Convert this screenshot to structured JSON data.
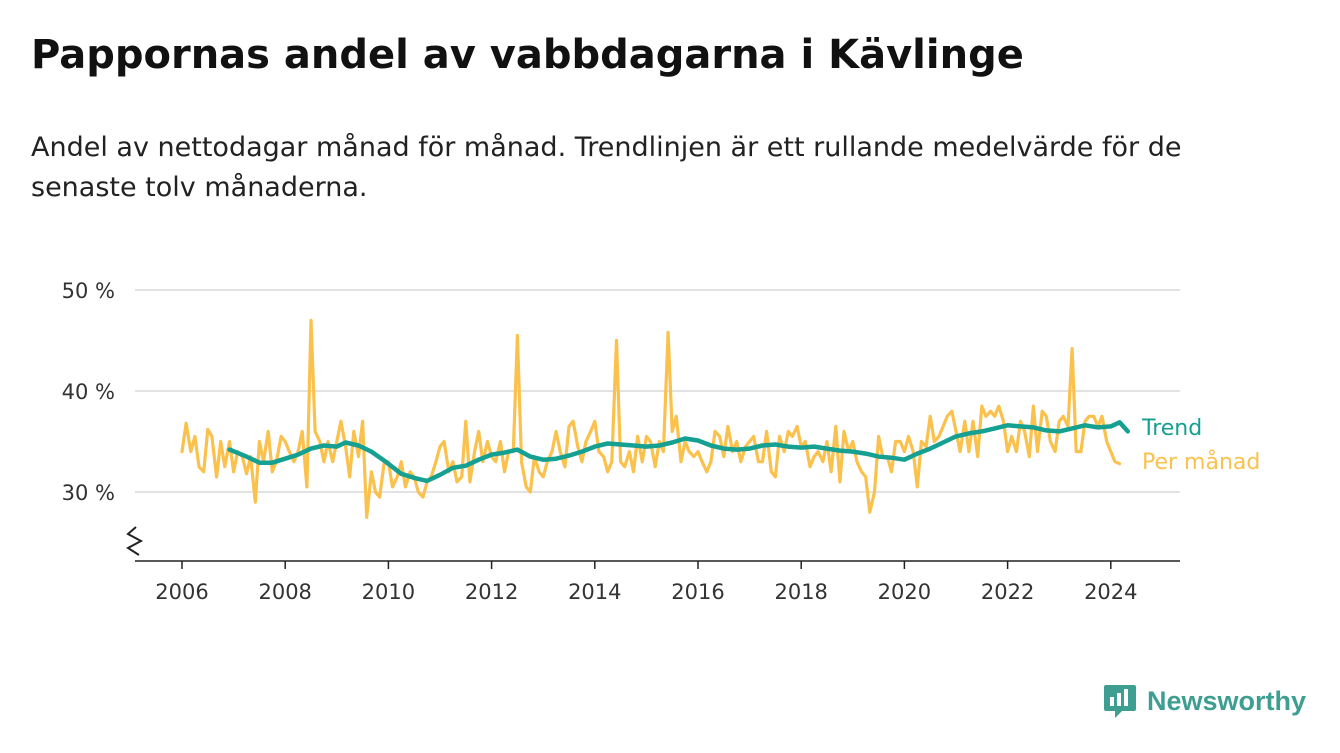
{
  "title": "Pappornas andel av vabbdagarna i Kävlinge",
  "subtitle": "Andel av nettodagar månad för månad. Trendlinjen är ett rullande medelvärde för de senaste tolv månaderna.",
  "brand": {
    "name": "Newsworthy",
    "color": "#3f9e92"
  },
  "chart_data": {
    "type": "line",
    "xlabel": "",
    "ylabel": "",
    "xlim": [
      2005.75,
      2025.1
    ],
    "ylim": [
      23,
      50
    ],
    "y_axis_break": true,
    "grid": true,
    "y_ticks": [
      {
        "value": 30,
        "label": "30 %"
      },
      {
        "value": 40,
        "label": "40 %"
      },
      {
        "value": 50,
        "label": "50 %"
      }
    ],
    "x_ticks": [
      {
        "value": 2006,
        "label": "2006"
      },
      {
        "value": 2008,
        "label": "2008"
      },
      {
        "value": 2010,
        "label": "2010"
      },
      {
        "value": 2012,
        "label": "2012"
      },
      {
        "value": 2014,
        "label": "2014"
      },
      {
        "value": 2016,
        "label": "2016"
      },
      {
        "value": 2018,
        "label": "2018"
      },
      {
        "value": 2020,
        "label": "2020"
      },
      {
        "value": 2022,
        "label": "2022"
      },
      {
        "value": 2024,
        "label": "2024"
      }
    ],
    "series": [
      {
        "name": "Per månad",
        "color": "#fbc14d",
        "points": [
          [
            2006.0,
            34
          ],
          [
            2006.08,
            36.8
          ],
          [
            2006.17,
            34
          ],
          [
            2006.25,
            35.5
          ],
          [
            2006.33,
            32.5
          ],
          [
            2006.42,
            32
          ],
          [
            2006.5,
            36.2
          ],
          [
            2006.58,
            35.5
          ],
          [
            2006.67,
            31.5
          ],
          [
            2006.75,
            35
          ],
          [
            2006.83,
            32.5
          ],
          [
            2006.92,
            35
          ],
          [
            2007.0,
            32
          ],
          [
            2007.08,
            34
          ],
          [
            2007.17,
            33.5
          ],
          [
            2007.25,
            31.8
          ],
          [
            2007.33,
            33.5
          ],
          [
            2007.42,
            29
          ],
          [
            2007.5,
            35
          ],
          [
            2007.58,
            33
          ],
          [
            2007.67,
            36
          ],
          [
            2007.75,
            32
          ],
          [
            2007.83,
            33
          ],
          [
            2007.92,
            35.5
          ],
          [
            2008.0,
            35
          ],
          [
            2008.08,
            34
          ],
          [
            2008.17,
            33
          ],
          [
            2008.25,
            34
          ],
          [
            2008.33,
            36
          ],
          [
            2008.42,
            30.5
          ],
          [
            2008.5,
            47
          ],
          [
            2008.58,
            36
          ],
          [
            2008.67,
            35
          ],
          [
            2008.75,
            33
          ],
          [
            2008.83,
            35
          ],
          [
            2008.92,
            33
          ],
          [
            2009.0,
            35
          ],
          [
            2009.08,
            37
          ],
          [
            2009.17,
            34.5
          ],
          [
            2009.25,
            31.5
          ],
          [
            2009.33,
            36
          ],
          [
            2009.42,
            33.5
          ],
          [
            2009.5,
            37
          ],
          [
            2009.58,
            27.5
          ],
          [
            2009.67,
            32
          ],
          [
            2009.75,
            30
          ],
          [
            2009.83,
            29.5
          ],
          [
            2009.92,
            33
          ],
          [
            2010.0,
            33
          ],
          [
            2010.08,
            30.5
          ],
          [
            2010.17,
            31.5
          ],
          [
            2010.25,
            33
          ],
          [
            2010.33,
            30.5
          ],
          [
            2010.42,
            32
          ],
          [
            2010.5,
            31.5
          ],
          [
            2010.58,
            30
          ],
          [
            2010.67,
            29.5
          ],
          [
            2010.75,
            31
          ],
          [
            2010.83,
            31.5
          ],
          [
            2010.92,
            33
          ],
          [
            2011.0,
            34.5
          ],
          [
            2011.08,
            35
          ],
          [
            2011.17,
            32
          ],
          [
            2011.25,
            33
          ],
          [
            2011.33,
            31
          ],
          [
            2011.42,
            31.5
          ],
          [
            2011.5,
            37
          ],
          [
            2011.58,
            31
          ],
          [
            2011.67,
            34
          ],
          [
            2011.75,
            36
          ],
          [
            2011.83,
            33
          ],
          [
            2011.92,
            35
          ],
          [
            2012.0,
            33.5
          ],
          [
            2012.08,
            33
          ],
          [
            2012.17,
            35
          ],
          [
            2012.25,
            32
          ],
          [
            2012.33,
            34
          ],
          [
            2012.42,
            34
          ],
          [
            2012.5,
            45.5
          ],
          [
            2012.58,
            33
          ],
          [
            2012.67,
            30.5
          ],
          [
            2012.75,
            30
          ],
          [
            2012.83,
            33.5
          ],
          [
            2012.92,
            32
          ],
          [
            2013.0,
            31.5
          ],
          [
            2013.08,
            33
          ],
          [
            2013.17,
            34
          ],
          [
            2013.25,
            36
          ],
          [
            2013.33,
            34
          ],
          [
            2013.42,
            32.5
          ],
          [
            2013.5,
            36.5
          ],
          [
            2013.58,
            37
          ],
          [
            2013.67,
            34.5
          ],
          [
            2013.75,
            33
          ],
          [
            2013.83,
            35
          ],
          [
            2013.92,
            36
          ],
          [
            2014.0,
            37
          ],
          [
            2014.08,
            34
          ],
          [
            2014.17,
            33.5
          ],
          [
            2014.25,
            32
          ],
          [
            2014.33,
            33
          ],
          [
            2014.42,
            45
          ],
          [
            2014.5,
            33
          ],
          [
            2014.58,
            32.5
          ],
          [
            2014.67,
            34
          ],
          [
            2014.75,
            32
          ],
          [
            2014.83,
            35.5
          ],
          [
            2014.92,
            33
          ],
          [
            2015.0,
            35.5
          ],
          [
            2015.08,
            35
          ],
          [
            2015.17,
            32.5
          ],
          [
            2015.25,
            35
          ],
          [
            2015.33,
            34
          ],
          [
            2015.42,
            45.8
          ],
          [
            2015.5,
            36
          ],
          [
            2015.58,
            37.5
          ],
          [
            2015.67,
            33
          ],
          [
            2015.75,
            35
          ],
          [
            2015.83,
            34
          ],
          [
            2015.92,
            33.5
          ],
          [
            2016.0,
            34
          ],
          [
            2016.08,
            33
          ],
          [
            2016.17,
            32
          ],
          [
            2016.25,
            33
          ],
          [
            2016.33,
            36
          ],
          [
            2016.42,
            35.5
          ],
          [
            2016.5,
            33.5
          ],
          [
            2016.58,
            36.5
          ],
          [
            2016.67,
            34
          ],
          [
            2016.75,
            35
          ],
          [
            2016.83,
            33
          ],
          [
            2016.92,
            34.5
          ],
          [
            2017.0,
            35
          ],
          [
            2017.08,
            35.5
          ],
          [
            2017.17,
            33
          ],
          [
            2017.25,
            33
          ],
          [
            2017.33,
            36
          ],
          [
            2017.42,
            32
          ],
          [
            2017.5,
            31.5
          ],
          [
            2017.58,
            35.5
          ],
          [
            2017.67,
            34
          ],
          [
            2017.75,
            36
          ],
          [
            2017.83,
            35.5
          ],
          [
            2017.92,
            36.5
          ],
          [
            2018.0,
            34.5
          ],
          [
            2018.08,
            35
          ],
          [
            2018.17,
            32.5
          ],
          [
            2018.25,
            33.5
          ],
          [
            2018.33,
            34
          ],
          [
            2018.42,
            33
          ],
          [
            2018.5,
            35
          ],
          [
            2018.58,
            32
          ],
          [
            2018.67,
            36.5
          ],
          [
            2018.75,
            31
          ],
          [
            2018.83,
            36
          ],
          [
            2018.92,
            34
          ],
          [
            2019.0,
            35
          ],
          [
            2019.08,
            33
          ],
          [
            2019.17,
            32
          ],
          [
            2019.25,
            31.5
          ],
          [
            2019.33,
            28
          ],
          [
            2019.42,
            30
          ],
          [
            2019.5,
            35.5
          ],
          [
            2019.58,
            33.5
          ],
          [
            2019.67,
            33.5
          ],
          [
            2019.75,
            32
          ],
          [
            2019.83,
            35
          ],
          [
            2019.92,
            35
          ],
          [
            2020.0,
            34
          ],
          [
            2020.08,
            35.5
          ],
          [
            2020.17,
            34
          ],
          [
            2020.25,
            30.5
          ],
          [
            2020.33,
            35
          ],
          [
            2020.42,
            34.5
          ],
          [
            2020.5,
            37.5
          ],
          [
            2020.58,
            35
          ],
          [
            2020.67,
            35.5
          ],
          [
            2020.75,
            36.5
          ],
          [
            2020.83,
            37.5
          ],
          [
            2020.92,
            38
          ],
          [
            2021.0,
            36
          ],
          [
            2021.08,
            34
          ],
          [
            2021.17,
            37
          ],
          [
            2021.25,
            34
          ],
          [
            2021.33,
            37
          ],
          [
            2021.42,
            33.5
          ],
          [
            2021.5,
            38.5
          ],
          [
            2021.58,
            37.5
          ],
          [
            2021.67,
            38
          ],
          [
            2021.75,
            37.5
          ],
          [
            2021.83,
            38.5
          ],
          [
            2021.92,
            37
          ],
          [
            2022.0,
            34
          ],
          [
            2022.08,
            35.5
          ],
          [
            2022.17,
            34
          ],
          [
            2022.25,
            37
          ],
          [
            2022.33,
            36
          ],
          [
            2022.42,
            33.5
          ],
          [
            2022.5,
            38.5
          ],
          [
            2022.58,
            34
          ],
          [
            2022.67,
            38
          ],
          [
            2022.75,
            37.5
          ],
          [
            2022.83,
            35
          ],
          [
            2022.92,
            34
          ],
          [
            2023.0,
            37
          ],
          [
            2023.08,
            37.5
          ],
          [
            2023.17,
            36.5
          ],
          [
            2023.25,
            44.2
          ],
          [
            2023.33,
            34
          ],
          [
            2023.42,
            34
          ],
          [
            2023.5,
            37
          ],
          [
            2023.58,
            37.5
          ],
          [
            2023.67,
            37.5
          ],
          [
            2023.75,
            36.5
          ],
          [
            2023.83,
            37.5
          ],
          [
            2023.92,
            35
          ],
          [
            2024.0,
            34
          ],
          [
            2024.08,
            33
          ],
          [
            2024.17,
            32.8
          ]
        ]
      },
      {
        "name": "Trend",
        "color": "#16a092",
        "points": [
          [
            2006.92,
            34.2
          ],
          [
            2007.25,
            33.5
          ],
          [
            2007.5,
            32.9
          ],
          [
            2007.75,
            32.9
          ],
          [
            2008.0,
            33.3
          ],
          [
            2008.25,
            33.7
          ],
          [
            2008.5,
            34.3
          ],
          [
            2008.75,
            34.6
          ],
          [
            2009.0,
            34.5
          ],
          [
            2009.17,
            34.9
          ],
          [
            2009.42,
            34.6
          ],
          [
            2009.67,
            34
          ],
          [
            2009.92,
            33.1
          ],
          [
            2010.25,
            31.8
          ],
          [
            2010.5,
            31.4
          ],
          [
            2010.75,
            31.1
          ],
          [
            2011.0,
            31.7
          ],
          [
            2011.25,
            32.4
          ],
          [
            2011.5,
            32.6
          ],
          [
            2011.75,
            33.2
          ],
          [
            2012.0,
            33.7
          ],
          [
            2012.25,
            33.9
          ],
          [
            2012.5,
            34.2
          ],
          [
            2012.75,
            33.5
          ],
          [
            2013.0,
            33.2
          ],
          [
            2013.25,
            33.3
          ],
          [
            2013.5,
            33.6
          ],
          [
            2013.75,
            34
          ],
          [
            2014.0,
            34.5
          ],
          [
            2014.25,
            34.8
          ],
          [
            2014.5,
            34.7
          ],
          [
            2014.75,
            34.6
          ],
          [
            2015.0,
            34.5
          ],
          [
            2015.25,
            34.6
          ],
          [
            2015.5,
            34.9
          ],
          [
            2015.75,
            35.3
          ],
          [
            2016.0,
            35.1
          ],
          [
            2016.25,
            34.6
          ],
          [
            2016.5,
            34.3
          ],
          [
            2016.75,
            34.2
          ],
          [
            2017.0,
            34.3
          ],
          [
            2017.25,
            34.6
          ],
          [
            2017.5,
            34.7
          ],
          [
            2017.75,
            34.5
          ],
          [
            2018.0,
            34.4
          ],
          [
            2018.25,
            34.5
          ],
          [
            2018.5,
            34.3
          ],
          [
            2018.75,
            34.1
          ],
          [
            2019.0,
            34
          ],
          [
            2019.25,
            33.8
          ],
          [
            2019.5,
            33.5
          ],
          [
            2019.75,
            33.4
          ],
          [
            2020.0,
            33.2
          ],
          [
            2020.25,
            33.8
          ],
          [
            2020.5,
            34.3
          ],
          [
            2020.75,
            34.9
          ],
          [
            2021.0,
            35.5
          ],
          [
            2021.25,
            35.8
          ],
          [
            2021.5,
            36
          ],
          [
            2021.75,
            36.3
          ],
          [
            2022.0,
            36.6
          ],
          [
            2022.25,
            36.5
          ],
          [
            2022.5,
            36.4
          ],
          [
            2022.75,
            36.1
          ],
          [
            2023.0,
            36
          ],
          [
            2023.25,
            36.3
          ],
          [
            2023.5,
            36.6
          ],
          [
            2023.75,
            36.4
          ],
          [
            2024.0,
            36.5
          ],
          [
            2024.17,
            36.9
          ],
          [
            2024.33,
            36
          ]
        ]
      }
    ]
  }
}
